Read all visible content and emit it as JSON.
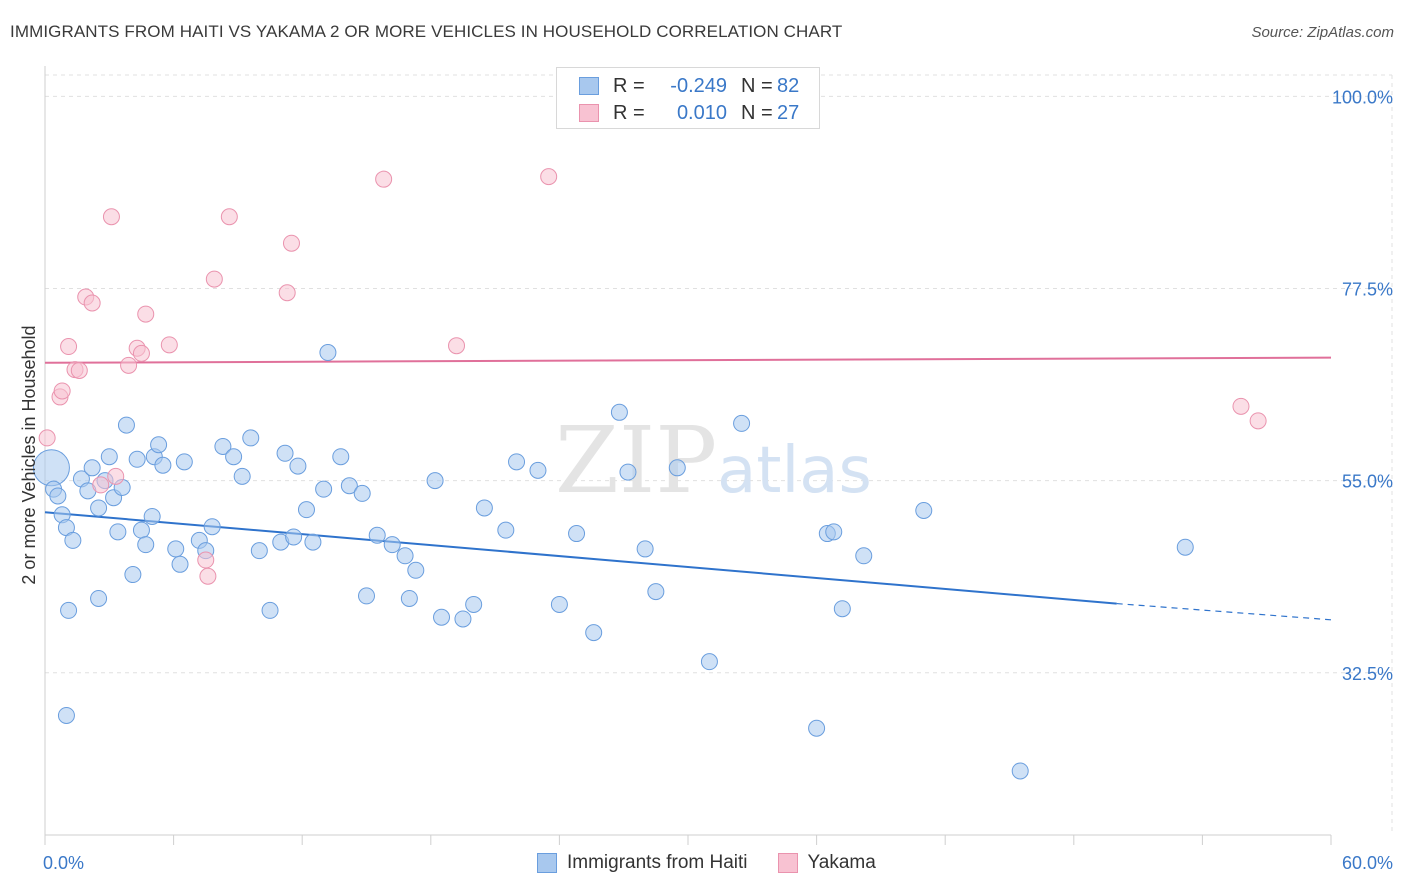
{
  "title": "IMMIGRANTS FROM HAITI VS YAKAMA 2 OR MORE VEHICLES IN HOUSEHOLD CORRELATION CHART",
  "source": "Source: ZipAtlas.com",
  "colors": {
    "blue_fill": "#a8c8ee",
    "blue_stroke": "#6a9ede",
    "blue_line": "#2f73cc",
    "pink_fill": "#f8c2d2",
    "pink_stroke": "#ea93ae",
    "pink_line": "#e0709a",
    "axis_text": "#3a78c8",
    "grid": "#e0e0e0"
  },
  "legend": {
    "rows": [
      {
        "r_label": "R =",
        "r_value": "-0.249",
        "n_label": "N =",
        "n_value": "82"
      },
      {
        "r_label": "R =",
        "r_value": "0.010",
        "n_label": "N =",
        "n_value": "27"
      }
    ]
  },
  "chart_data": {
    "type": "scatter",
    "title": "IMMIGRANTS FROM HAITI VS YAKAMA 2 OR MORE VEHICLES IN HOUSEHOLD CORRELATION CHART",
    "xlabel": "",
    "ylabel": "2 or more Vehicles in Household",
    "xlim": [
      0,
      60
    ],
    "ylim": [
      13.5,
      102.5
    ],
    "x_tick_labels": [
      "0.0%",
      "60.0%"
    ],
    "y_ticks": [
      {
        "value": 100.0,
        "label": "100.0%"
      },
      {
        "value": 77.5,
        "label": "77.5%"
      },
      {
        "value": 55.0,
        "label": "55.0%"
      },
      {
        "value": 32.5,
        "label": "32.5%"
      }
    ],
    "grid": true,
    "legend_position": "top-center",
    "watermark": "ZIPatlas",
    "series": [
      {
        "name": "Immigrants from Haiti",
        "color_key": "blue",
        "trend": {
          "x_start": 0,
          "y_start": 51.3,
          "x_solid_end": 50.0,
          "y_solid_end": 40.6,
          "x_end": 60,
          "y_end": 38.7
        },
        "points": [
          {
            "x": 0.3,
            "y": 56.5,
            "big": true
          },
          {
            "x": 0.4,
            "y": 54.0
          },
          {
            "x": 0.6,
            "y": 53.2
          },
          {
            "x": 0.8,
            "y": 51.0
          },
          {
            "x": 1.0,
            "y": 49.5
          },
          {
            "x": 1.1,
            "y": 39.8
          },
          {
            "x": 1.3,
            "y": 48.0
          },
          {
            "x": 1.0,
            "y": 27.5
          },
          {
            "x": 1.7,
            "y": 55.2
          },
          {
            "x": 2.0,
            "y": 53.8
          },
          {
            "x": 2.2,
            "y": 56.5
          },
          {
            "x": 2.5,
            "y": 51.8
          },
          {
            "x": 2.5,
            "y": 41.2
          },
          {
            "x": 2.8,
            "y": 55.0
          },
          {
            "x": 3.0,
            "y": 57.8
          },
          {
            "x": 3.2,
            "y": 53.0
          },
          {
            "x": 3.4,
            "y": 49.0
          },
          {
            "x": 3.6,
            "y": 54.2
          },
          {
            "x": 3.8,
            "y": 61.5
          },
          {
            "x": 4.1,
            "y": 44.0
          },
          {
            "x": 4.3,
            "y": 57.5
          },
          {
            "x": 4.5,
            "y": 49.2
          },
          {
            "x": 4.7,
            "y": 47.5
          },
          {
            "x": 5.0,
            "y": 50.8
          },
          {
            "x": 5.1,
            "y": 57.8
          },
          {
            "x": 5.3,
            "y": 59.2
          },
          {
            "x": 5.5,
            "y": 56.8
          },
          {
            "x": 6.1,
            "y": 47.0
          },
          {
            "x": 6.3,
            "y": 45.2
          },
          {
            "x": 6.5,
            "y": 57.2
          },
          {
            "x": 7.2,
            "y": 48.0
          },
          {
            "x": 7.5,
            "y": 46.8
          },
          {
            "x": 7.8,
            "y": 49.6
          },
          {
            "x": 8.3,
            "y": 59.0
          },
          {
            "x": 8.8,
            "y": 57.8
          },
          {
            "x": 9.2,
            "y": 55.5
          },
          {
            "x": 9.6,
            "y": 60.0
          },
          {
            "x": 10.0,
            "y": 46.8
          },
          {
            "x": 10.5,
            "y": 39.8
          },
          {
            "x": 11.2,
            "y": 58.2
          },
          {
            "x": 11.0,
            "y": 47.8
          },
          {
            "x": 11.6,
            "y": 48.4
          },
          {
            "x": 11.8,
            "y": 56.7
          },
          {
            "x": 12.2,
            "y": 51.6
          },
          {
            "x": 12.5,
            "y": 47.8
          },
          {
            "x": 13.0,
            "y": 54.0
          },
          {
            "x": 13.2,
            "y": 70.0
          },
          {
            "x": 13.8,
            "y": 57.8
          },
          {
            "x": 14.2,
            "y": 54.4
          },
          {
            "x": 14.8,
            "y": 53.5
          },
          {
            "x": 15.0,
            "y": 41.5
          },
          {
            "x": 15.5,
            "y": 48.6
          },
          {
            "x": 16.2,
            "y": 47.5
          },
          {
            "x": 16.8,
            "y": 46.2
          },
          {
            "x": 17.0,
            "y": 41.2
          },
          {
            "x": 17.3,
            "y": 44.5
          },
          {
            "x": 18.2,
            "y": 55.0
          },
          {
            "x": 18.5,
            "y": 39.0
          },
          {
            "x": 19.5,
            "y": 38.8
          },
          {
            "x": 20.0,
            "y": 40.5
          },
          {
            "x": 20.5,
            "y": 51.8
          },
          {
            "x": 21.5,
            "y": 49.2
          },
          {
            "x": 22.0,
            "y": 57.2
          },
          {
            "x": 23.0,
            "y": 56.2
          },
          {
            "x": 24.0,
            "y": 40.5
          },
          {
            "x": 24.8,
            "y": 48.8
          },
          {
            "x": 25.6,
            "y": 37.2
          },
          {
            "x": 26.8,
            "y": 63.0
          },
          {
            "x": 27.2,
            "y": 56.0
          },
          {
            "x": 28.0,
            "y": 47.0
          },
          {
            "x": 28.5,
            "y": 42.0
          },
          {
            "x": 29.5,
            "y": 56.5
          },
          {
            "x": 31.0,
            "y": 33.8
          },
          {
            "x": 32.5,
            "y": 61.7
          },
          {
            "x": 36.5,
            "y": 48.8
          },
          {
            "x": 36.8,
            "y": 49.0
          },
          {
            "x": 37.2,
            "y": 40.0
          },
          {
            "x": 38.2,
            "y": 46.2
          },
          {
            "x": 41.0,
            "y": 51.5
          },
          {
            "x": 36.0,
            "y": 26.0
          },
          {
            "x": 45.5,
            "y": 21.0
          },
          {
            "x": 53.2,
            "y": 47.2
          }
        ]
      },
      {
        "name": "Yakama",
        "color_key": "pink",
        "trend": {
          "x_start": 0,
          "y_start": 68.8,
          "x_end": 60,
          "y_end": 69.4
        },
        "points": [
          {
            "x": 0.1,
            "y": 60.0
          },
          {
            "x": 0.7,
            "y": 64.8
          },
          {
            "x": 0.8,
            "y": 65.5
          },
          {
            "x": 1.1,
            "y": 70.7
          },
          {
            "x": 1.4,
            "y": 68.0
          },
          {
            "x": 1.6,
            "y": 67.9
          },
          {
            "x": 1.9,
            "y": 76.5
          },
          {
            "x": 2.2,
            "y": 75.8
          },
          {
            "x": 3.1,
            "y": 85.9
          },
          {
            "x": 3.3,
            "y": 55.5
          },
          {
            "x": 3.9,
            "y": 68.5
          },
          {
            "x": 4.3,
            "y": 70.5
          },
          {
            "x": 4.5,
            "y": 69.9
          },
          {
            "x": 4.7,
            "y": 74.5
          },
          {
            "x": 5.8,
            "y": 70.9
          },
          {
            "x": 7.5,
            "y": 45.7
          },
          {
            "x": 7.6,
            "y": 43.8
          },
          {
            "x": 7.9,
            "y": 78.6
          },
          {
            "x": 8.6,
            "y": 85.9
          },
          {
            "x": 11.3,
            "y": 77.0
          },
          {
            "x": 11.5,
            "y": 82.8
          },
          {
            "x": 15.8,
            "y": 90.3
          },
          {
            "x": 19.2,
            "y": 70.8
          },
          {
            "x": 23.5,
            "y": 90.6
          },
          {
            "x": 2.6,
            "y": 54.5
          },
          {
            "x": 55.8,
            "y": 63.7
          },
          {
            "x": 56.6,
            "y": 62.0
          }
        ]
      }
    ]
  },
  "bottom_legend": [
    {
      "label": "Immigrants from Haiti"
    },
    {
      "label": "Yakama"
    }
  ]
}
